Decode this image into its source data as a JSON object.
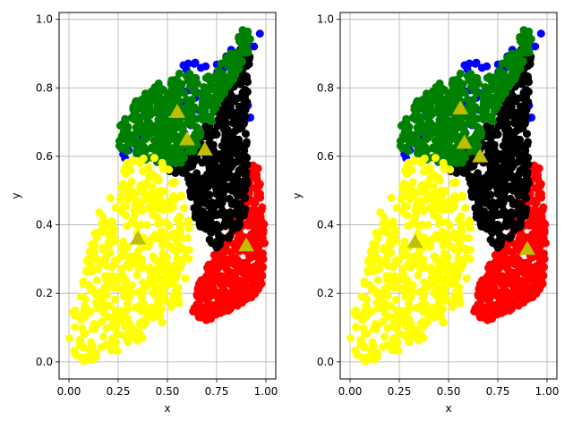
{
  "chart_data": [
    {
      "type": "scatter",
      "xlabel": "x",
      "ylabel": "y",
      "xlim": [
        -0.05,
        1.05
      ],
      "ylim": [
        -0.05,
        1.02
      ],
      "xticks": [
        "0.00",
        "0.25",
        "0.50",
        "0.75",
        "1.00"
      ],
      "yticks": [
        "0.0",
        "0.2",
        "0.4",
        "0.6",
        "0.8",
        "1.0"
      ],
      "grid": true,
      "clusters": [
        {
          "color": "#0000ff",
          "region": [
            [
              0.22,
              0.55
            ],
            [
              0.22,
              0.66
            ],
            [
              0.55,
              0.86
            ],
            [
              0.85,
              0.93
            ],
            [
              0.95,
              0.97
            ],
            [
              0.97,
              0.96
            ],
            [
              0.9,
              0.6
            ],
            [
              0.5,
              0.7
            ],
            [
              0.25,
              0.55
            ]
          ]
        },
        {
          "color": "#ff0000",
          "region": [
            [
              0.62,
              0.13
            ],
            [
              0.65,
              0.22
            ],
            [
              0.72,
              0.3
            ],
            [
              0.8,
              0.36
            ],
            [
              0.85,
              0.44
            ],
            [
              0.88,
              0.52
            ],
            [
              0.91,
              0.57
            ],
            [
              0.96,
              0.58
            ],
            [
              0.98,
              0.46
            ],
            [
              1.0,
              0.35
            ],
            [
              1.0,
              0.25
            ],
            [
              0.96,
              0.2
            ],
            [
              0.88,
              0.17
            ],
            [
              0.78,
              0.14
            ],
            [
              0.7,
              0.12
            ]
          ]
        },
        {
          "color": "#000000",
          "region": [
            [
              0.5,
              0.55
            ],
            [
              0.56,
              0.62
            ],
            [
              0.66,
              0.66
            ],
            [
              0.74,
              0.73
            ],
            [
              0.8,
              0.83
            ],
            [
              0.88,
              0.93
            ],
            [
              0.92,
              0.9
            ],
            [
              0.9,
              0.7
            ],
            [
              0.91,
              0.55
            ],
            [
              0.9,
              0.46
            ],
            [
              0.88,
              0.4
            ],
            [
              0.82,
              0.36
            ],
            [
              0.75,
              0.33
            ],
            [
              0.7,
              0.36
            ],
            [
              0.64,
              0.42
            ],
            [
              0.62,
              0.48
            ],
            [
              0.6,
              0.55
            ]
          ]
        },
        {
          "color": "#008000",
          "region": [
            [
              0.24,
              0.63
            ],
            [
              0.25,
              0.68
            ],
            [
              0.33,
              0.76
            ],
            [
              0.42,
              0.8
            ],
            [
              0.5,
              0.83
            ],
            [
              0.58,
              0.86
            ],
            [
              0.66,
              0.83
            ],
            [
              0.74,
              0.86
            ],
            [
              0.82,
              0.9
            ],
            [
              0.88,
              0.97
            ],
            [
              0.93,
              0.96
            ],
            [
              0.9,
              0.87
            ],
            [
              0.83,
              0.82
            ],
            [
              0.77,
              0.75
            ],
            [
              0.72,
              0.7
            ],
            [
              0.68,
              0.64
            ],
            [
              0.6,
              0.59
            ],
            [
              0.5,
              0.56
            ],
            [
              0.42,
              0.58
            ],
            [
              0.33,
              0.6
            ]
          ]
        },
        {
          "color": "#ffff00",
          "region": [
            [
              0.0,
              0.0
            ],
            [
              0.0,
              0.1
            ],
            [
              0.03,
              0.17
            ],
            [
              0.08,
              0.27
            ],
            [
              0.12,
              0.36
            ],
            [
              0.15,
              0.44
            ],
            [
              0.22,
              0.53
            ],
            [
              0.29,
              0.58
            ],
            [
              0.36,
              0.6
            ],
            [
              0.44,
              0.6
            ],
            [
              0.5,
              0.57
            ],
            [
              0.56,
              0.52
            ],
            [
              0.6,
              0.45
            ],
            [
              0.62,
              0.35
            ],
            [
              0.6,
              0.25
            ],
            [
              0.55,
              0.15
            ],
            [
              0.45,
              0.1
            ],
            [
              0.35,
              0.06
            ],
            [
              0.25,
              0.02
            ],
            [
              0.1,
              0.0
            ]
          ]
        }
      ],
      "centroids": [
        {
          "x": 0.55,
          "y": 0.73
        },
        {
          "x": 0.6,
          "y": 0.65
        },
        {
          "x": 0.69,
          "y": 0.62
        },
        {
          "x": 0.35,
          "y": 0.36
        },
        {
          "x": 0.9,
          "y": 0.34
        }
      ],
      "centroid_color": "#bfbf00"
    },
    {
      "type": "scatter",
      "xlabel": "x",
      "ylabel": "y",
      "xlim": [
        -0.05,
        1.05
      ],
      "ylim": [
        -0.05,
        1.02
      ],
      "xticks": [
        "0.00",
        "0.25",
        "0.50",
        "0.75",
        "1.00"
      ],
      "yticks": [
        "0.0",
        "0.2",
        "0.4",
        "0.6",
        "0.8",
        "1.0"
      ],
      "grid": true,
      "clusters": [
        {
          "color": "#0000ff",
          "region": [
            [
              0.22,
              0.55
            ],
            [
              0.22,
              0.66
            ],
            [
              0.55,
              0.86
            ],
            [
              0.85,
              0.93
            ],
            [
              0.95,
              0.97
            ],
            [
              0.97,
              0.96
            ],
            [
              0.9,
              0.6
            ],
            [
              0.5,
              0.7
            ],
            [
              0.25,
              0.55
            ]
          ]
        },
        {
          "color": "#ff0000",
          "region": [
            [
              0.62,
              0.13
            ],
            [
              0.65,
              0.22
            ],
            [
              0.72,
              0.3
            ],
            [
              0.8,
              0.36
            ],
            [
              0.85,
              0.44
            ],
            [
              0.88,
              0.52
            ],
            [
              0.91,
              0.57
            ],
            [
              0.96,
              0.58
            ],
            [
              0.98,
              0.46
            ],
            [
              1.0,
              0.35
            ],
            [
              1.0,
              0.25
            ],
            [
              0.96,
              0.2
            ],
            [
              0.88,
              0.17
            ],
            [
              0.78,
              0.14
            ],
            [
              0.7,
              0.12
            ]
          ]
        },
        {
          "color": "#000000",
          "region": [
            [
              0.5,
              0.55
            ],
            [
              0.56,
              0.62
            ],
            [
              0.66,
              0.66
            ],
            [
              0.74,
              0.73
            ],
            [
              0.8,
              0.83
            ],
            [
              0.88,
              0.93
            ],
            [
              0.92,
              0.9
            ],
            [
              0.9,
              0.7
            ],
            [
              0.91,
              0.55
            ],
            [
              0.9,
              0.46
            ],
            [
              0.88,
              0.4
            ],
            [
              0.82,
              0.36
            ],
            [
              0.75,
              0.33
            ],
            [
              0.7,
              0.36
            ],
            [
              0.64,
              0.42
            ],
            [
              0.62,
              0.48
            ],
            [
              0.6,
              0.55
            ]
          ]
        },
        {
          "color": "#008000",
          "region": [
            [
              0.24,
              0.63
            ],
            [
              0.25,
              0.68
            ],
            [
              0.33,
              0.76
            ],
            [
              0.42,
              0.8
            ],
            [
              0.5,
              0.83
            ],
            [
              0.58,
              0.86
            ],
            [
              0.66,
              0.83
            ],
            [
              0.74,
              0.86
            ],
            [
              0.82,
              0.9
            ],
            [
              0.88,
              0.97
            ],
            [
              0.93,
              0.96
            ],
            [
              0.9,
              0.87
            ],
            [
              0.83,
              0.82
            ],
            [
              0.77,
              0.75
            ],
            [
              0.72,
              0.7
            ],
            [
              0.68,
              0.64
            ],
            [
              0.6,
              0.59
            ],
            [
              0.5,
              0.56
            ],
            [
              0.42,
              0.58
            ],
            [
              0.33,
              0.6
            ]
          ]
        },
        {
          "color": "#ffff00",
          "region": [
            [
              0.0,
              0.0
            ],
            [
              0.0,
              0.1
            ],
            [
              0.03,
              0.17
            ],
            [
              0.08,
              0.27
            ],
            [
              0.12,
              0.36
            ],
            [
              0.15,
              0.44
            ],
            [
              0.22,
              0.53
            ],
            [
              0.29,
              0.58
            ],
            [
              0.36,
              0.6
            ],
            [
              0.44,
              0.6
            ],
            [
              0.5,
              0.57
            ],
            [
              0.56,
              0.52
            ],
            [
              0.6,
              0.45
            ],
            [
              0.62,
              0.35
            ],
            [
              0.6,
              0.25
            ],
            [
              0.55,
              0.15
            ],
            [
              0.45,
              0.1
            ],
            [
              0.35,
              0.06
            ],
            [
              0.25,
              0.02
            ],
            [
              0.1,
              0.0
            ]
          ]
        }
      ],
      "centroids": [
        {
          "x": 0.56,
          "y": 0.74
        },
        {
          "x": 0.58,
          "y": 0.64
        },
        {
          "x": 0.66,
          "y": 0.6
        },
        {
          "x": 0.33,
          "y": 0.35
        },
        {
          "x": 0.9,
          "y": 0.33
        }
      ],
      "centroid_color": "#bfbf00"
    }
  ]
}
